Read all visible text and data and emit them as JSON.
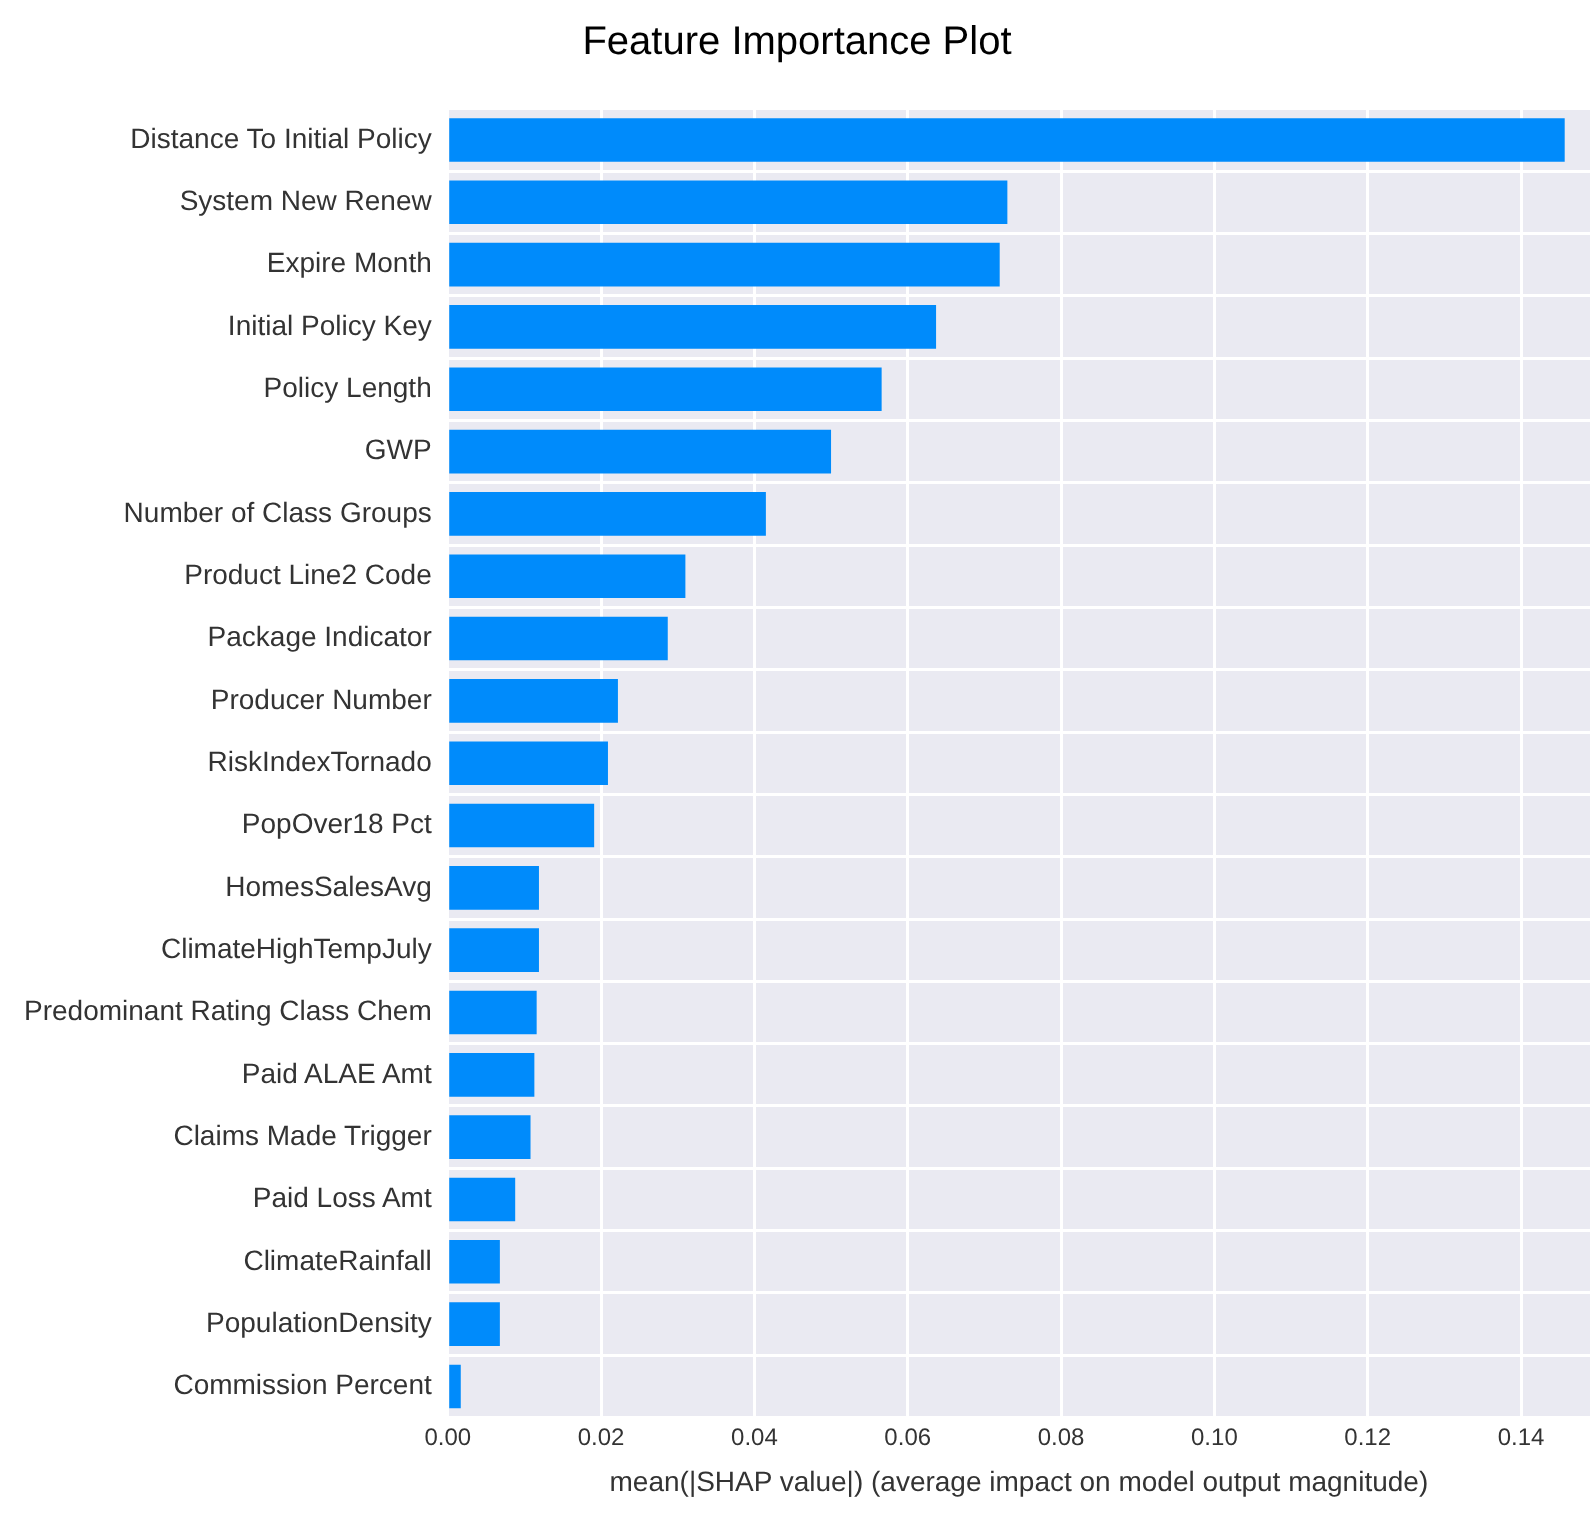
{
  "chart_data": {
    "type": "bar",
    "orientation": "horizontal",
    "title": "Feature Importance Plot",
    "xlabel": "mean(|SHAP value|) (average impact on model output magnitude)",
    "categories": [
      "Distance To Initial Policy",
      "System New Renew",
      "Expire Month",
      "Initial Policy Key",
      "Policy Length",
      "GWP",
      "Number of Class Groups",
      "Product Line2 Code",
      "Package Indicator",
      "Producer Number",
      "RiskIndexTornado",
      "PopOver18 Pct",
      "HomesSalesAvg",
      "ClimateHighTempJuly",
      "Predominant Rating Class Chem",
      "Paid ALAE Amt",
      "Claims Made Trigger",
      "Paid Loss Amt",
      "ClimateRainfall",
      "PopulationDensity",
      "Commission Percent"
    ],
    "values": [
      0.1457,
      0.073,
      0.072,
      0.0637,
      0.0566,
      0.05,
      0.0415,
      0.031,
      0.0287,
      0.0222,
      0.0209,
      0.0191,
      0.0119,
      0.0119,
      0.0116,
      0.0113,
      0.0108,
      0.0088,
      0.0068,
      0.0068,
      0.0017
    ],
    "color": "#008bfb",
    "xlim": [
      0,
      0.149
    ],
    "xticks": [
      {
        "value": 0,
        "label": "0.00"
      },
      {
        "value": 0.02,
        "label": "0.02"
      },
      {
        "value": 0.04,
        "label": "0.04"
      },
      {
        "value": 0.06,
        "label": "0.06"
      },
      {
        "value": 0.08,
        "label": "0.08"
      },
      {
        "value": 0.1,
        "label": "0.10"
      },
      {
        "value": 0.12,
        "label": "0.12"
      },
      {
        "value": 0.14,
        "label": "0.14"
      }
    ],
    "grid": true
  }
}
